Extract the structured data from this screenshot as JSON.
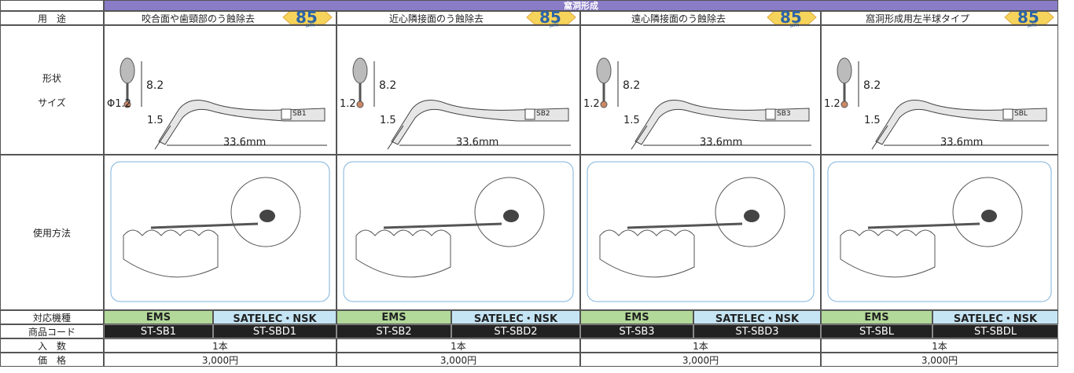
{
  "header": {
    "title": "窩洞形成"
  },
  "row_labels": [
    "用　途",
    "形状",
    "サイズ",
    "使用方法",
    "対応機種",
    "商品コード",
    "入　数",
    "価　格"
  ],
  "products": [
    {
      "usage": "咬合面や歯頸部のう蝕除去",
      "badge": "85",
      "badge_unit": "μm",
      "diameter": "Φ1.2",
      "length": "8.2",
      "tip": "1.5",
      "shank": "33.6mm",
      "marking": "SB1",
      "compat_a": "EMS",
      "compat_b": "SATELEC・NSK",
      "code_a": "ST-SB1",
      "code_b": "ST-SBD1",
      "quantity": "1本",
      "price": "3,000円"
    },
    {
      "usage": "近心隣接面のう蝕除去",
      "badge": "85",
      "badge_unit": "μm",
      "diameter": "1.2",
      "length": "8.2",
      "tip": "1.5",
      "shank": "33.6mm",
      "marking": "SB2",
      "compat_a": "EMS",
      "compat_b": "SATELEC・NSK",
      "code_a": "ST-SB2",
      "code_b": "ST-SBD2",
      "quantity": "1本",
      "price": "3,000円"
    },
    {
      "usage": "遠心隣接面のう蝕除去",
      "badge": "85",
      "badge_unit": "μm",
      "diameter": "1.2",
      "length": "8.2",
      "tip": "1.5",
      "shank": "33.6mm",
      "marking": "SB3",
      "compat_a": "EMS",
      "compat_b": "SATELEC・NSK",
      "code_a": "ST-SB3",
      "code_b": "ST-SBD3",
      "quantity": "1本",
      "price": "3,000円"
    },
    {
      "usage": "窩洞形成用左半球タイプ",
      "badge": "85",
      "badge_unit": "μm",
      "diameter": "1.2",
      "length": "8.2",
      "tip": "1.5",
      "shank": "33.6mm",
      "marking": "SBL",
      "compat_a": "EMS",
      "compat_b": "SATELEC・NSK",
      "code_a": "ST-SBL",
      "code_b": "ST-SBDL",
      "quantity": "1本",
      "price": "3,000円"
    }
  ]
}
